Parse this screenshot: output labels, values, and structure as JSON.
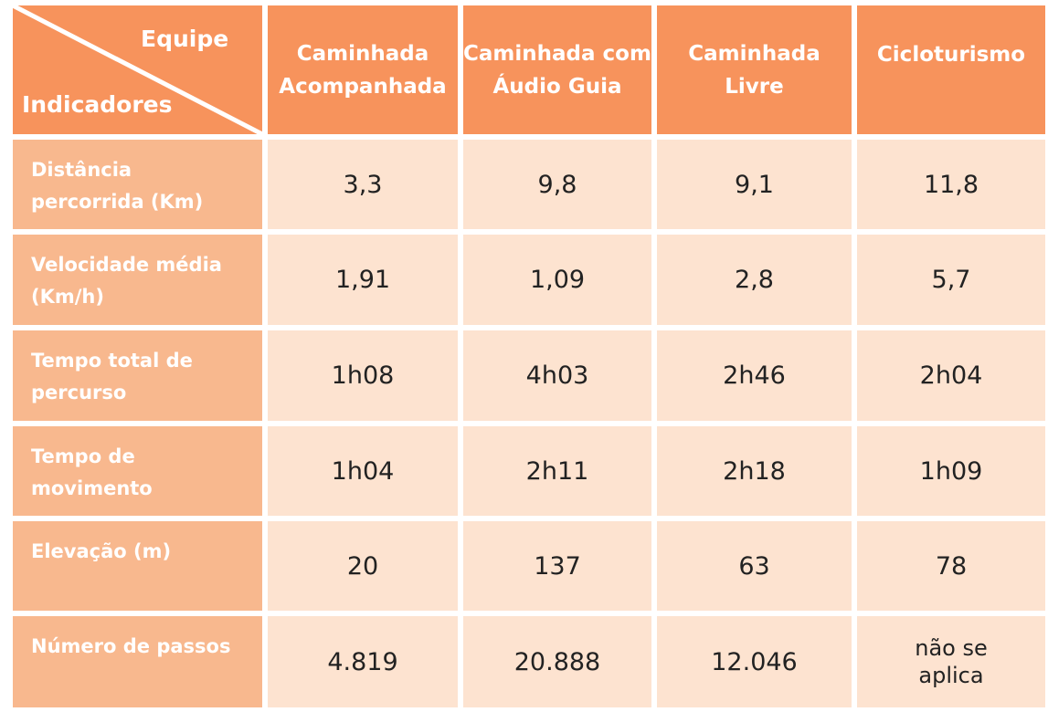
{
  "corner": {
    "top": "Equipe",
    "bottom": "Indicadores"
  },
  "headers": [
    [
      "Caminhada",
      "Acompanhada"
    ],
    [
      "Caminhada com",
      "Áudio Guia"
    ],
    [
      "Caminhada",
      "Livre"
    ],
    [
      "Cicloturismo"
    ]
  ],
  "rows": [
    {
      "label": [
        "Distância",
        "percorrida (Km)"
      ],
      "values": [
        "3,3",
        "9,8",
        "9,1",
        "11,8"
      ]
    },
    {
      "label": [
        "Velocidade média",
        "(Km/h)"
      ],
      "values": [
        "1,91",
        "1,09",
        "2,8",
        "5,7"
      ]
    },
    {
      "label": [
        "Tempo total de",
        "percurso"
      ],
      "values": [
        "1h08",
        "4h03",
        "2h46",
        "2h04"
      ]
    },
    {
      "label": [
        "Tempo de",
        "movimento"
      ],
      "values": [
        "1h04",
        "2h11",
        "2h18",
        "1h09"
      ]
    },
    {
      "label": [
        "Elevação (m)"
      ],
      "values": [
        "20",
        "137",
        "63",
        "78"
      ]
    },
    {
      "label": [
        "Número de passos"
      ],
      "values": [
        "4.819",
        "20.888",
        "12.046",
        [
          "não se",
          "aplica"
        ]
      ]
    }
  ]
}
